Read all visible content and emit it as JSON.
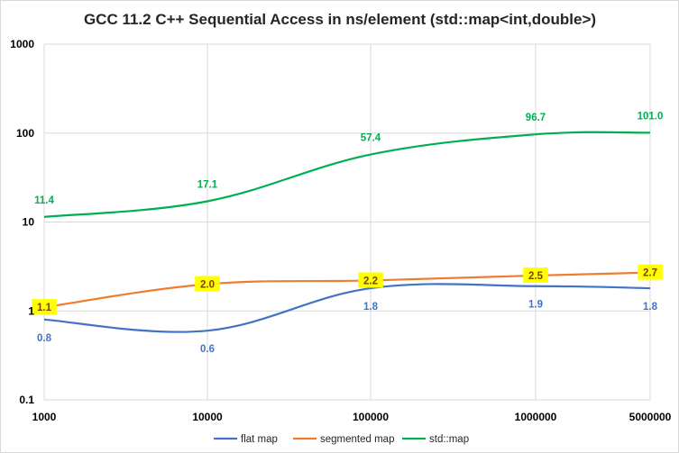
{
  "chart_data": {
    "type": "line",
    "title": "GCC 11.2 C++ Sequential Access in ns/element (std::map<int,double>)",
    "xlabel": "",
    "ylabel": "",
    "y_scale": "log",
    "ylim": [
      0.1,
      1000
    ],
    "grid": true,
    "legend_position": "bottom",
    "x": [
      "1000",
      "10000",
      "100000",
      "1000000",
      "5000000"
    ],
    "y_ticks": [
      "0.1",
      "1",
      "10",
      "100",
      "1000"
    ],
    "series": [
      {
        "name": "flat map",
        "color": "#4472c4",
        "values": [
          0.8,
          0.6,
          1.8,
          1.9,
          1.8
        ],
        "labels": [
          "0.8",
          "0.6",
          "1.8",
          "1.9",
          "1.8"
        ]
      },
      {
        "name": "segmented map",
        "color": "#ed7d31",
        "values": [
          1.1,
          2.0,
          2.2,
          2.5,
          2.7
        ],
        "labels": [
          "1.1",
          "2.0",
          "2.2",
          "2.5",
          "2.7"
        ],
        "label_highlight": "#ffff00"
      },
      {
        "name": "std::map",
        "color": "#00b050",
        "values": [
          11.4,
          17.1,
          57.4,
          96.7,
          101.0
        ],
        "labels": [
          "11.4",
          "17.1",
          "57.4",
          "96.7",
          "101.0"
        ]
      }
    ]
  }
}
